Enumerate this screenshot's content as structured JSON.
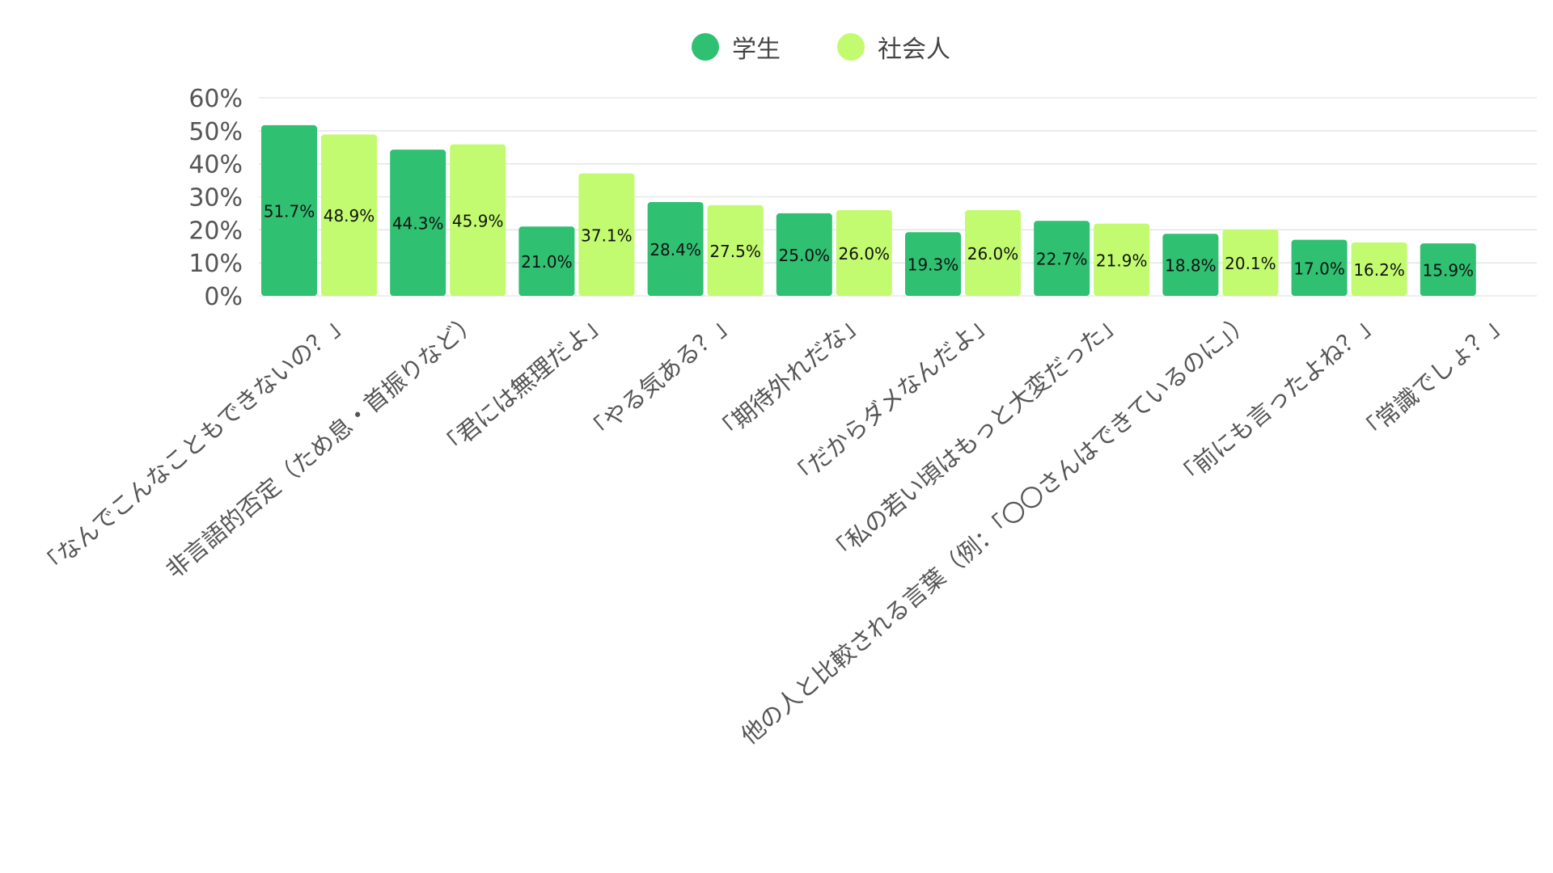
{
  "chart_data": {
    "type": "bar",
    "title": "",
    "xlabel": "",
    "ylabel": "",
    "ylim": [
      0,
      60
    ],
    "y_ticks": [
      "0%",
      "10%",
      "20%",
      "30%",
      "40%",
      "50%",
      "60%"
    ],
    "grid": true,
    "legend_placement": "top",
    "categories": [
      "「なんでこんなこともできないの？」",
      "非言語的否定（ため息・首振りなど）",
      "「君には無理だよ」",
      "「やる気ある？」",
      "「期待外れだな」",
      "「だからダメなんだよ」",
      "「私の若い頃はもっと大変だった」",
      "他の人と比較される言葉（例：「〇〇さんはできているのに」）",
      "「前にも言ったよね？」",
      "「常識でしょ？」"
    ],
    "series": [
      {
        "name": "学生",
        "color": "#2fc071",
        "values": [
          51.7,
          44.3,
          21.0,
          28.4,
          25.0,
          19.3,
          22.7,
          18.8,
          17.0,
          15.9
        ],
        "labels": [
          "51.7%",
          "44.3%",
          "21.0%",
          "28.4%",
          "25.0%",
          "19.3%",
          "22.7%",
          "18.8%",
          "17.0%",
          "15.9%"
        ]
      },
      {
        "name": "社会人",
        "color": "#c2fb6f",
        "values": [
          48.9,
          45.9,
          37.1,
          27.5,
          26.0,
          26.0,
          21.9,
          20.1,
          16.2,
          null
        ],
        "labels": [
          "48.9%",
          "45.9%",
          "37.1%",
          "27.5%",
          "26.0%",
          "26.0%",
          "21.9%",
          "20.1%",
          "16.2%",
          ""
        ]
      }
    ]
  }
}
